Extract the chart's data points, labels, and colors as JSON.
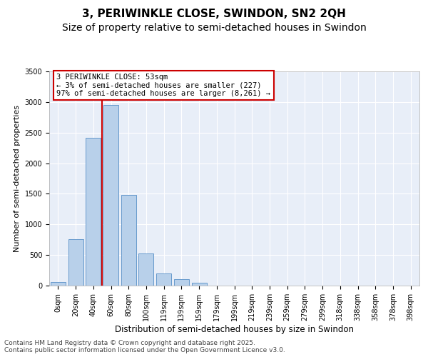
{
  "title1": "3, PERIWINKLE CLOSE, SWINDON, SN2 2QH",
  "title2": "Size of property relative to semi-detached houses in Swindon",
  "xlabel": "Distribution of semi-detached houses by size in Swindon",
  "ylabel": "Number of semi-detached properties",
  "categories": [
    "0sqm",
    "20sqm",
    "40sqm",
    "60sqm",
    "80sqm",
    "100sqm",
    "119sqm",
    "139sqm",
    "159sqm",
    "179sqm",
    "199sqm",
    "219sqm",
    "239sqm",
    "259sqm",
    "279sqm",
    "299sqm",
    "318sqm",
    "338sqm",
    "358sqm",
    "378sqm",
    "398sqm"
  ],
  "bar_values": [
    55,
    760,
    2420,
    2950,
    1480,
    530,
    200,
    105,
    45,
    0,
    0,
    0,
    0,
    0,
    0,
    0,
    0,
    0,
    0,
    0,
    0
  ],
  "bar_color": "#b8d0ea",
  "bar_edge_color": "#6699cc",
  "background_color": "#e8eef8",
  "grid_color": "#ffffff",
  "ylim": [
    0,
    3500
  ],
  "yticks": [
    0,
    500,
    1000,
    1500,
    2000,
    2500,
    3000,
    3500
  ],
  "red_line_color": "#cc0000",
  "red_line_x": 2.5,
  "annotation_text": "3 PERIWINKLE CLOSE: 53sqm\n← 3% of semi-detached houses are smaller (227)\n97% of semi-detached houses are larger (8,261) →",
  "annotation_box_color": "#ffffff",
  "annotation_box_edge_color": "#cc0000",
  "footer_text": "Contains HM Land Registry data © Crown copyright and database right 2025.\nContains public sector information licensed under the Open Government Licence v3.0.",
  "title1_fontsize": 11,
  "title2_fontsize": 10,
  "xlabel_fontsize": 8.5,
  "ylabel_fontsize": 8,
  "tick_fontsize": 7,
  "annotation_fontsize": 7.5,
  "footer_fontsize": 6.5
}
